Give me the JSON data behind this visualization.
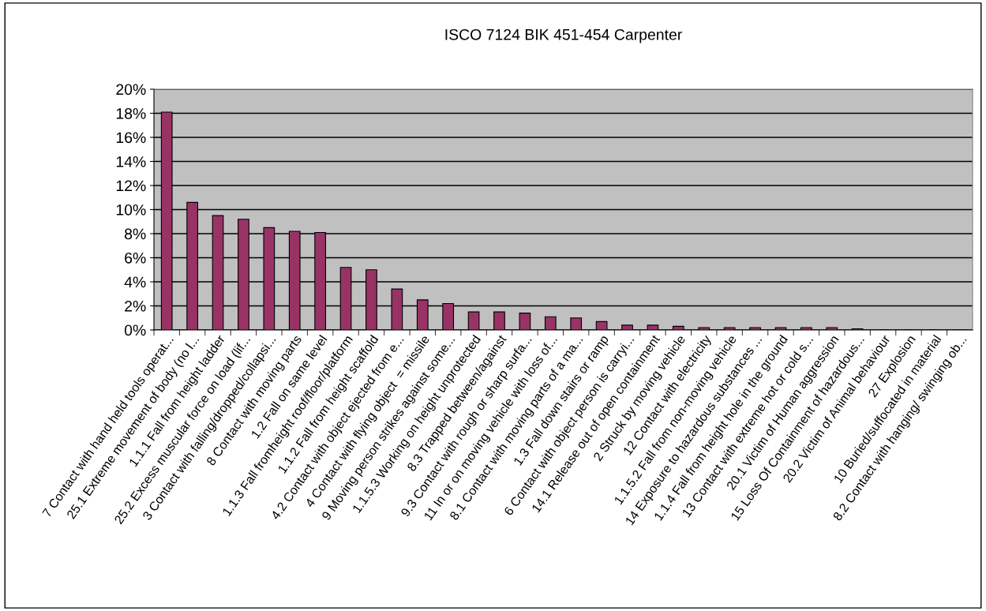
{
  "chart_data": {
    "type": "bar",
    "title": "ISCO 7124 BIK 451-454 Carpenter",
    "categories": [
      "7 Contact with hand held tools operat...",
      "25.1 Extreme movement of body (no l...",
      "1.1.1 Fall from height ladder",
      "25.2 Excess muscular force on load (lif...",
      "3 Contact with falling/dropped/collapsi...",
      "8 Contact with moving parts",
      "1.2 Fall on same level",
      "1.1.3 Fall fromheight roof/floor/platform",
      "1.1.2 Fall from height scaffold",
      "4.2 Contact with object ejected from e...",
      "4 Contact with flying object  = missile",
      "9 Moving person strikes against some...",
      "1.1.5.3 Working on height unprotected",
      "8.3 Trapped between/against",
      "9.3 Contact with rough or sharp surfa...",
      "11 In or on moving vehicle with loss of...",
      "8.1 Contact with moving parts of a ma...",
      "1.3 Fall down stairs or ramp",
      "6 Contact with object person is carryi...",
      "14.1 Release out of open containment",
      "2 Struck by moving vehicle",
      "12 Contact with electricity",
      "1.1.5.2 Fall from non-moving vehicle",
      "14 Exposure to hazardous substances ...",
      "1.1.4 Fall from height hole in the ground",
      "13 Contact with extreme hot or cold s...",
      "20.1 Victim of Human aggression",
      "15 Loss Of Containment of hazardous...",
      "20.2 Victim of Animal behaviour",
      "27 Explosion",
      "10 Buried/suffocated in material",
      "8.2 Contact with hanging/ swinging ob..."
    ],
    "values": [
      18.1,
      10.6,
      9.5,
      9.2,
      8.5,
      8.2,
      8.1,
      5.2,
      5.0,
      3.4,
      2.5,
      2.2,
      1.5,
      1.5,
      1.4,
      1.1,
      1.0,
      0.7,
      0.4,
      0.4,
      0.3,
      0.2,
      0.2,
      0.2,
      0.2,
      0.2,
      0.2,
      0.1,
      0,
      0,
      0,
      0
    ],
    "color": "#993366",
    "ylim": [
      0,
      20
    ],
    "yticks": [
      {
        "value": 0,
        "label": "0%"
      },
      {
        "value": 2,
        "label": "2%"
      },
      {
        "value": 4,
        "label": "4%"
      },
      {
        "value": 6,
        "label": "6%"
      },
      {
        "value": 8,
        "label": "8%"
      },
      {
        "value": 10,
        "label": "10%"
      },
      {
        "value": 12,
        "label": "12%"
      },
      {
        "value": 14,
        "label": "14%"
      },
      {
        "value": 16,
        "label": "16%"
      },
      {
        "value": 18,
        "label": "18%"
      },
      {
        "value": 20,
        "label": "20%"
      }
    ],
    "grid": "y",
    "legend": false
  }
}
